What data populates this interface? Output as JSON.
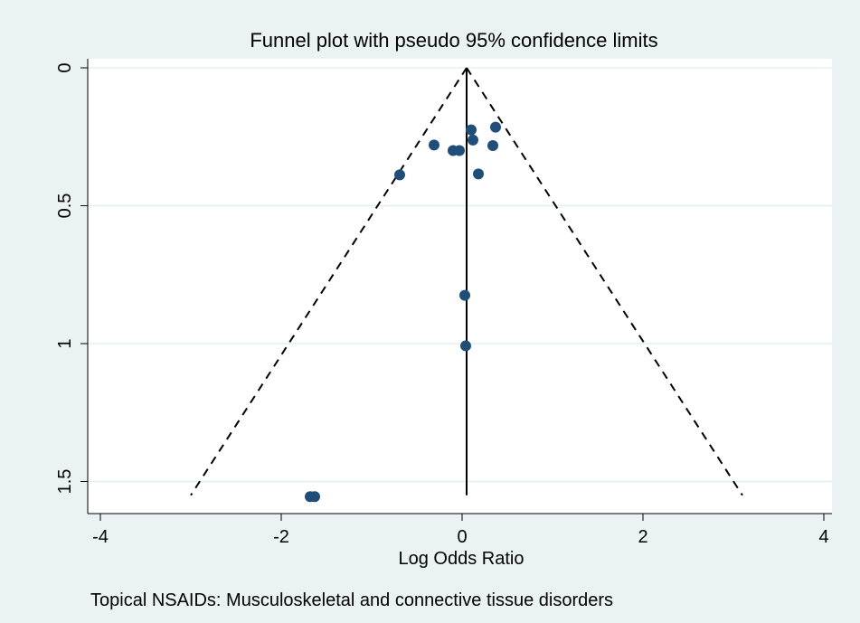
{
  "chart_data": {
    "type": "scatter",
    "title": "Funnel plot with pseudo 95% confidence limits",
    "xlabel": "Log Odds Ratio",
    "ylabel": "",
    "note": "Topical NSAIDs: Musculoskeletal and connective tissue disorders",
    "xlim": [
      -4,
      4
    ],
    "ylim": [
      0,
      1.55
    ],
    "y_reversed": true,
    "xticks": [
      -4,
      -2,
      0,
      2,
      4
    ],
    "xtick_labels": [
      "-4",
      "-2",
      "0",
      "2",
      "4"
    ],
    "yticks": [
      0,
      0.5,
      1,
      1.5
    ],
    "ytick_labels": [
      "0",
      "0.5",
      "1",
      "1.5"
    ],
    "grid": true,
    "pooled_estimate": 0.05,
    "confidence_limits": {
      "apex": [
        0.05,
        0
      ],
      "lower_left": [
        -3.0,
        1.55
      ],
      "lower_right": [
        3.1,
        1.55
      ],
      "style": "dashed"
    },
    "points": [
      {
        "x": 0.37,
        "y": 0.215
      },
      {
        "x": 0.1,
        "y": 0.225
      },
      {
        "x": 0.12,
        "y": 0.262
      },
      {
        "x": -0.31,
        "y": 0.28
      },
      {
        "x": 0.34,
        "y": 0.282
      },
      {
        "x": -0.1,
        "y": 0.3
      },
      {
        "x": -0.03,
        "y": 0.3
      },
      {
        "x": -0.69,
        "y": 0.388
      },
      {
        "x": 0.18,
        "y": 0.385
      },
      {
        "x": 0.03,
        "y": 0.825
      },
      {
        "x": 0.04,
        "y": 1.008
      },
      {
        "x": -1.68,
        "y": 1.555
      },
      {
        "x": -1.63,
        "y": 1.555
      }
    ],
    "colors": {
      "background": "#eaf2f3",
      "plot_area": "#ffffff",
      "grid": "#e6eff0",
      "marker": "#1f4e79",
      "lines": "#000000"
    }
  }
}
